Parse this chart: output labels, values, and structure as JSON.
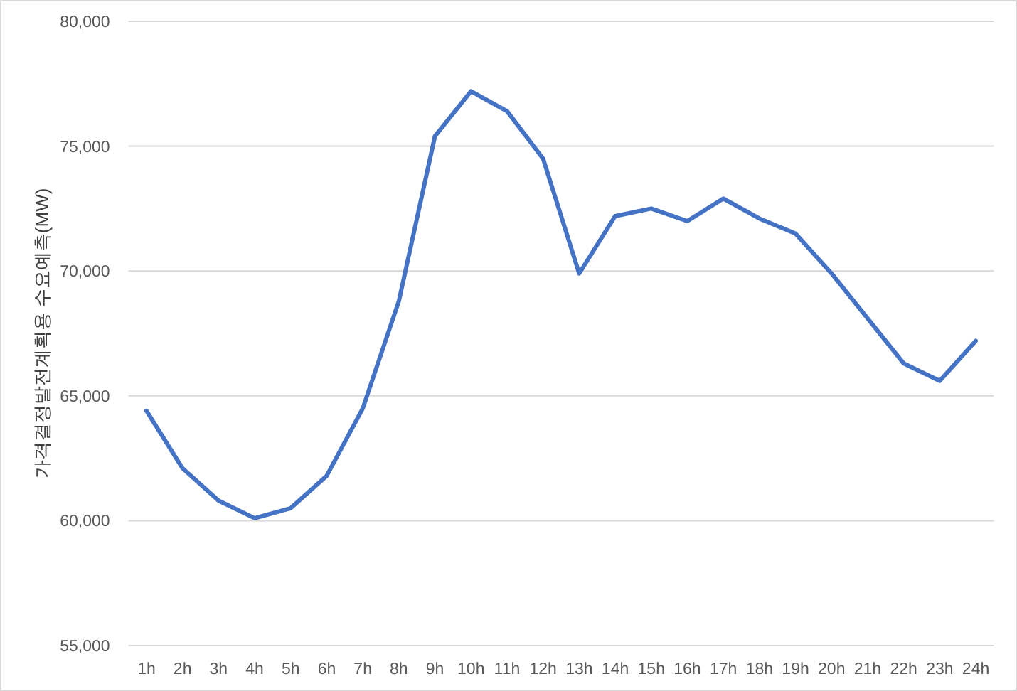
{
  "chart_data": {
    "type": "line",
    "ylabel": "가격결정발전계획용 수요예측(MW)",
    "categories": [
      "1h",
      "2h",
      "3h",
      "4h",
      "5h",
      "6h",
      "7h",
      "8h",
      "9h",
      "10h",
      "11h",
      "12h",
      "13h",
      "14h",
      "15h",
      "16h",
      "17h",
      "18h",
      "19h",
      "20h",
      "21h",
      "22h",
      "23h",
      "24h"
    ],
    "values": [
      64400,
      62100,
      60800,
      60100,
      60500,
      61800,
      64500,
      68800,
      75400,
      77200,
      76400,
      74500,
      69900,
      72200,
      72500,
      72000,
      72900,
      72100,
      71500,
      69900,
      68100,
      66300,
      65600,
      67200
    ],
    "color": "#4472c4",
    "ylim": [
      55000,
      80000
    ],
    "yticks": [
      {
        "value": 55000,
        "label": "55,000"
      },
      {
        "value": 60000,
        "label": "60,000"
      },
      {
        "value": 65000,
        "label": "65,000"
      },
      {
        "value": 70000,
        "label": "70,000"
      },
      {
        "value": 75000,
        "label": "75,000"
      },
      {
        "value": 80000,
        "label": "80,000"
      }
    ],
    "grid": "y"
  }
}
